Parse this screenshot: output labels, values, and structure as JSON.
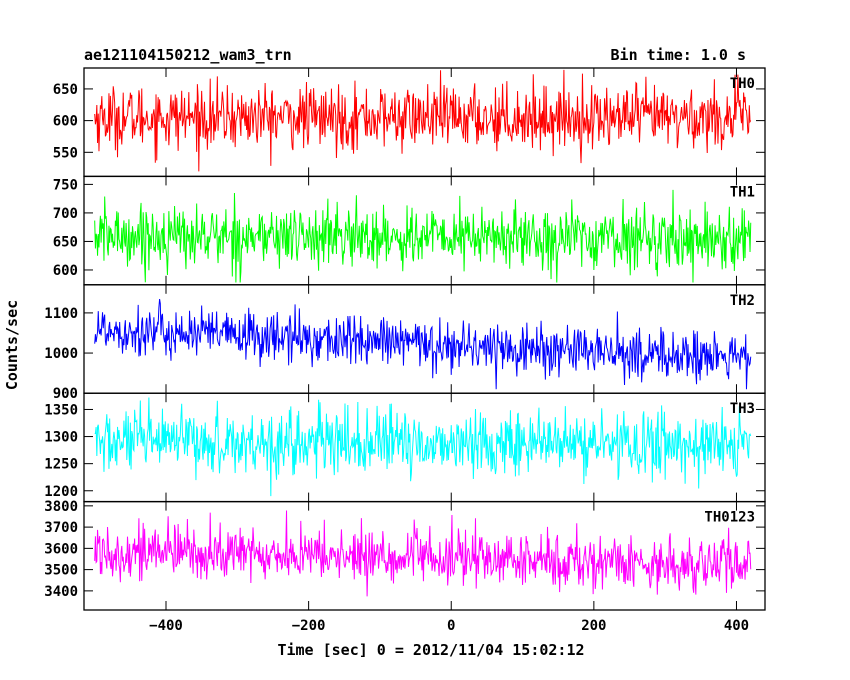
{
  "chart_data": {
    "type": "line",
    "title": "ae121104150212_wam3_trn",
    "subtitle": "Bin time: 1.0 s",
    "xlabel": "Time [sec] 0 = 2012/11/04 15:02:12",
    "ylabel": "Counts/sec",
    "xlim": [
      -515,
      440
    ],
    "x_range": [
      -500,
      420
    ],
    "x_ticks": [
      -400,
      -200,
      0,
      200,
      400
    ],
    "x_tick_labels": [
      "−400",
      "−200",
      "0",
      "200",
      "400"
    ],
    "grid": false,
    "panels": [
      {
        "name": "TH0",
        "color": "#ff0000",
        "ylim": [
          512,
          683
        ],
        "ticks": [
          550,
          600,
          650
        ],
        "tick_labels": [
          "550",
          "600",
          "650"
        ],
        "mean_start": 605,
        "mean_end": 605,
        "noise_std": 25,
        "spike_min": 520,
        "spike_max": 680
      },
      {
        "name": "TH1",
        "color": "#00ff00",
        "ylim": [
          574,
          764
        ],
        "ticks": [
          600,
          650,
          700,
          750
        ],
        "tick_labels": [
          "600",
          "650",
          "700",
          "750"
        ],
        "mean_start": 660,
        "mean_end": 655,
        "noise_std": 27,
        "spike_min": 578,
        "spike_max": 755
      },
      {
        "name": "TH2",
        "color": "#0000ff",
        "ylim": [
          900,
          1170
        ],
        "ticks": [
          900,
          1000,
          1100
        ],
        "tick_labels": [
          "900",
          "1000",
          "1100"
        ],
        "mean_start": 1060,
        "mean_end": 985,
        "noise_std": 32,
        "spike_min": 910,
        "spike_max": 1170
      },
      {
        "name": "TH3",
        "color": "#00ffff",
        "ylim": [
          1180,
          1380
        ],
        "ticks": [
          1200,
          1250,
          1300,
          1350
        ],
        "tick_labels": [
          "1200",
          "1250",
          "1300",
          "1350"
        ],
        "mean_start": 1290,
        "mean_end": 1285,
        "noise_std": 30,
        "spike_min": 1190,
        "spike_max": 1372
      },
      {
        "name": "TH0123",
        "color": "#ff00ff",
        "ylim": [
          3310,
          3820
        ],
        "ticks": [
          3400,
          3500,
          3600,
          3700,
          3800
        ],
        "tick_labels": [
          "3400",
          "3500",
          "3600",
          "3700",
          "3800"
        ],
        "mean_start": 3590,
        "mean_end": 3520,
        "noise_std": 65,
        "spike_min": 3330,
        "spike_max": 3820
      }
    ]
  }
}
